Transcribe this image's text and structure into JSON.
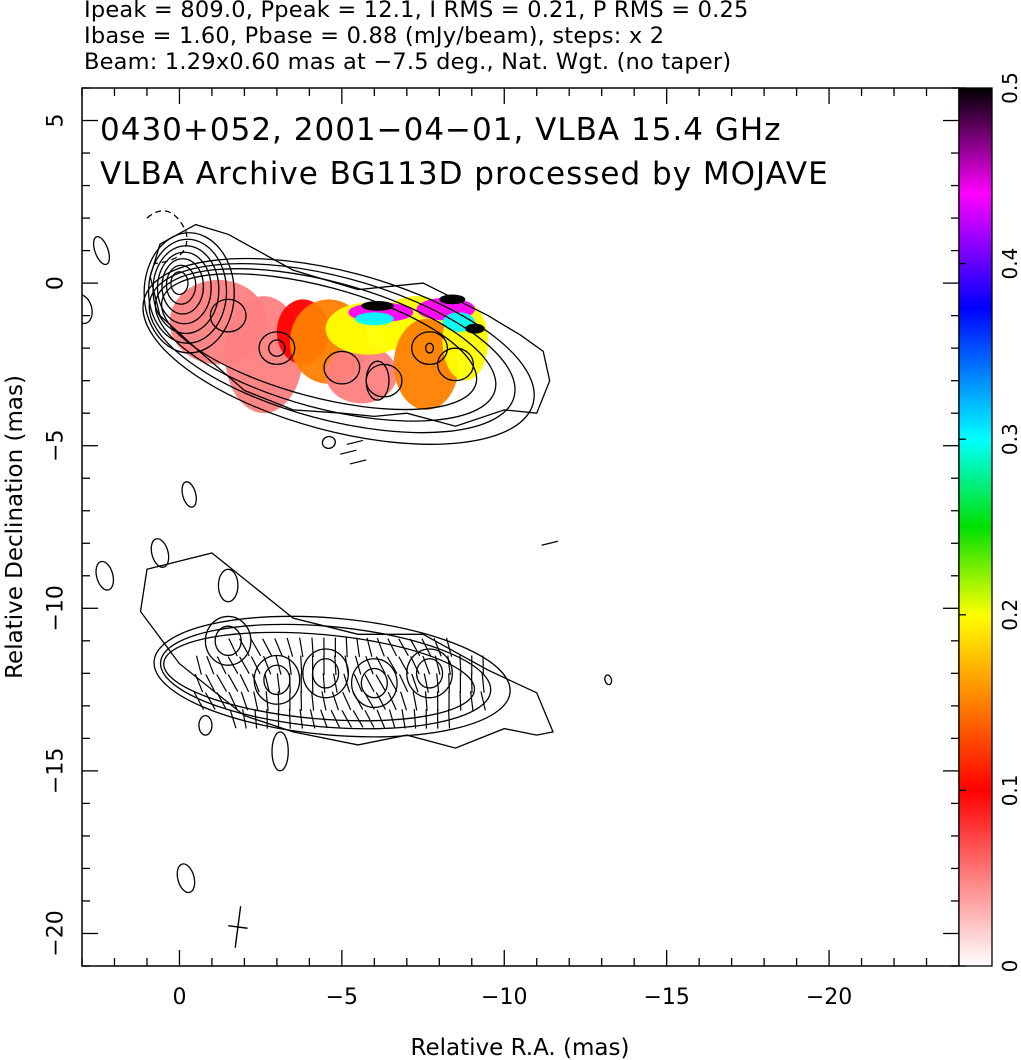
{
  "header": {
    "line1": "Ipeak = 809.0, Ppeak = 12.1, I RMS = 0.21, P RMS = 0.25",
    "line2": "Ibase = 1.60, Pbase = 0.88 (mJy/beam), steps: x 2",
    "line3": "Beam: 1.29x0.60 mas at −7.5 deg., Nat. Wgt. (no taper)"
  },
  "chart_data": {
    "type": "heatmap",
    "title": "",
    "annotations": [
      "0430+052, 2001−04−01, VLBA 15.4 GHz",
      "VLBA Archive BG113D processed by MOJAVE"
    ],
    "xlabel": "Relative R.A. (mas)",
    "ylabel": "Relative Declination (mas)",
    "xlim": [
      3,
      -24
    ],
    "ylim": [
      -21,
      6
    ],
    "xticks": [
      0,
      -5,
      -10,
      -15,
      -20
    ],
    "xtick_labels": [
      "0",
      "−5",
      "−10",
      "−15",
      "−20"
    ],
    "yticks": [
      5,
      0,
      -5,
      -10,
      -15,
      -20
    ],
    "ytick_labels": [
      "5",
      "0",
      "−5",
      "−10",
      "−15",
      "−20"
    ],
    "colorbar": {
      "range": [
        0,
        0.5
      ],
      "ticks": [
        0,
        0.1,
        0.2,
        0.3,
        0.4,
        0.5
      ],
      "tick_labels": [
        "0",
        "0.1",
        "0.2",
        "0.3",
        "0.4",
        "0.5"
      ],
      "colors": [
        "#ffffff",
        "#ff8080",
        "#ff0000",
        "#ff8000",
        "#ffff00",
        "#00e000",
        "#00ffff",
        "#0000ff",
        "#ff00ff",
        "#000000"
      ]
    },
    "upper_panel": {
      "peak_center": [
        0,
        0
      ],
      "jet_knots": [
        [
          -1.5,
          -1.0
        ],
        [
          -3.0,
          -2.0
        ],
        [
          -5.0,
          -2.6
        ],
        [
          -6.3,
          -3.0
        ],
        [
          -7.7,
          -2.0
        ],
        [
          -8.5,
          -2.5
        ]
      ],
      "color_regions": [
        {
          "x": [
            0.0,
            -3.5
          ],
          "y": [
            -0.2,
            -3.8
          ],
          "value": 0.08
        },
        {
          "x": [
            -3.5,
            -6.0
          ],
          "y": [
            -0.6,
            -3.5
          ],
          "value": 0.15
        },
        {
          "x": [
            -5.0,
            -8.5
          ],
          "y": [
            -0.8,
            -2.5
          ],
          "value": 0.2
        },
        {
          "x": [
            -5.0,
            -9.2
          ],
          "y": [
            -1.0,
            -1.5
          ],
          "value": 0.45
        }
      ]
    },
    "lower_panel": {
      "offset_y": -12.3,
      "knots": [
        [
          -1.5,
          -11.0
        ],
        [
          -3.0,
          -12.2
        ],
        [
          -4.5,
          -12.0
        ],
        [
          -6.0,
          -12.3
        ],
        [
          -7.7,
          -12.0
        ]
      ]
    },
    "beam": {
      "x": -1.8,
      "y": -19.8,
      "major": 1.29,
      "minor": 0.6,
      "pa": -7.5
    }
  }
}
